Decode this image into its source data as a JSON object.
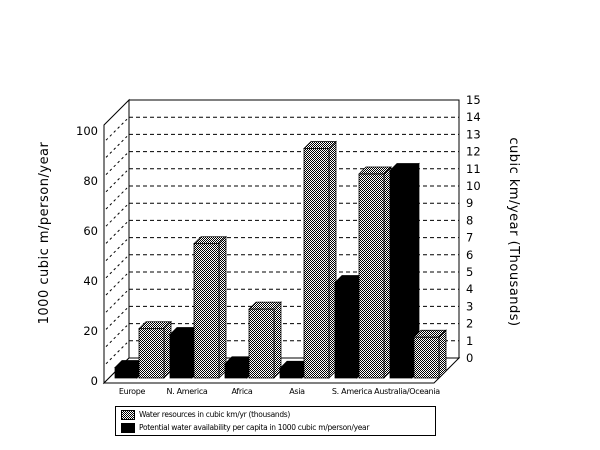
{
  "window": {
    "background": "#ffffff"
  },
  "colors": {
    "foreground": "#000000",
    "plot_background": "#ffffff",
    "solid_series": "#000000",
    "hatched_series_fg": "#000000",
    "hatched_series_bg": "#ffffff"
  },
  "chart_data": {
    "type": "bar",
    "style": "3d-column, dual-axis",
    "grid": "dashed horizontal gridlines on back wall",
    "legend_position": "bottom-left",
    "categories": [
      "Europe",
      "N. America",
      "Africa",
      "Asia",
      "S. America",
      "Australia/Oceania"
    ],
    "series": [
      {
        "name": "Water resources in cubic km/yr (thousands)",
        "axis": "right",
        "pattern": "checker-hatch",
        "values": [
          2.9,
          7.9,
          4.05,
          13.5,
          12.0,
          2.4
        ]
      },
      {
        "name": "Potential water availability per capita in 1000 cubic m/person/year",
        "axis": "left",
        "pattern": "solid-black",
        "values": [
          4.2,
          17.4,
          5.7,
          3.9,
          38.2,
          83.0
        ]
      }
    ],
    "left_axis": {
      "title": "1000 cubic m/person/year",
      "min": 0,
      "max": 100,
      "ticks": [
        "0",
        "20",
        "40",
        "60",
        "80",
        "100"
      ]
    },
    "right_axis": {
      "title": "cubic km/year (Thousands)",
      "min": 0,
      "max": 15,
      "ticks": [
        "0",
        "1",
        "2",
        "3",
        "4",
        "5",
        "6",
        "7",
        "8",
        "9",
        "10",
        "11",
        "12",
        "13",
        "14",
        "15"
      ]
    }
  },
  "legend": {
    "items": [
      {
        "label": "Water resources in cubic km/yr (thousands)",
        "swatch": "hatched"
      },
      {
        "label": "Potential water availability per capita in 1000 cubic m/person/year",
        "swatch": "black"
      }
    ]
  }
}
